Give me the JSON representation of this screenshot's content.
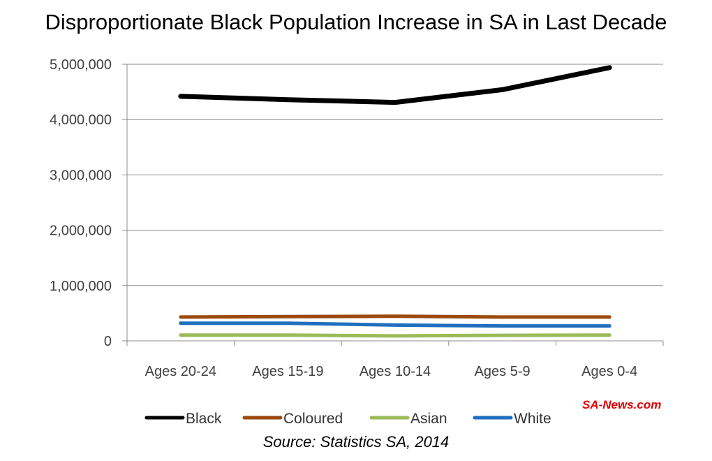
{
  "chart_data": {
    "type": "line",
    "title": "Disproportionate Black Population Increase in SA in Last Decade",
    "categories": [
      "Ages 20-24",
      "Ages 15-19",
      "Ages 10-14",
      "Ages 5-9",
      "Ages 0-4"
    ],
    "series": [
      {
        "name": "Black",
        "color": "#000000",
        "values": [
          4420000,
          4360000,
          4310000,
          4540000,
          4940000
        ]
      },
      {
        "name": "Coloured",
        "color": "#9c4a0c",
        "values": [
          430000,
          440000,
          445000,
          430000,
          430000
        ]
      },
      {
        "name": "Asian",
        "color": "#9bbb59",
        "values": [
          105000,
          105000,
          90000,
          100000,
          105000
        ]
      },
      {
        "name": "White",
        "color": "#1f6fbf",
        "values": [
          320000,
          320000,
          285000,
          270000,
          270000
        ]
      }
    ],
    "ylim": [
      0,
      5000000
    ],
    "yticks": [
      "0",
      "1,000,000",
      "2,000,000",
      "3,000,000",
      "4,000,000",
      "5,000,000"
    ],
    "grid": true,
    "legend": "bottom"
  },
  "watermark": "SA-News.com",
  "source": "Source: Statistics SA, 2014"
}
